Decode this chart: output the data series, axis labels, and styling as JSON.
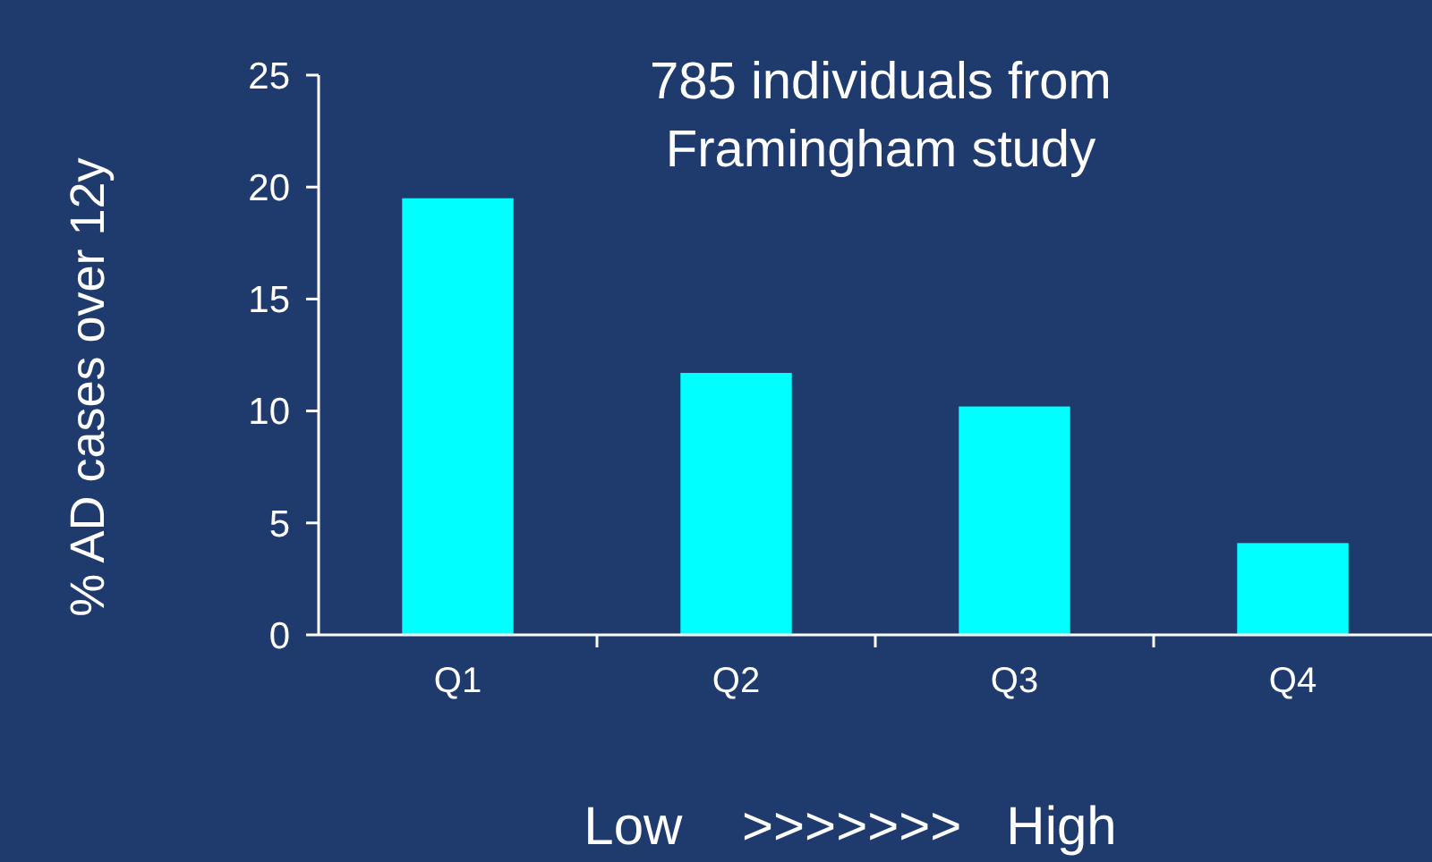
{
  "chart_data": {
    "type": "bar",
    "title": "785 individuals from Framingham study",
    "xlabel": "Low    >>>>>>>   High",
    "ylabel": "% AD cases over 12y",
    "categories": [
      "Q1",
      "Q2",
      "Q3",
      "Q4"
    ],
    "values": [
      19.5,
      11.7,
      10.2,
      4.1
    ],
    "color": "#00ffff",
    "ylim": [
      0,
      25
    ],
    "yticks": [
      0,
      5,
      10,
      15,
      20,
      25
    ],
    "grid": false
  }
}
